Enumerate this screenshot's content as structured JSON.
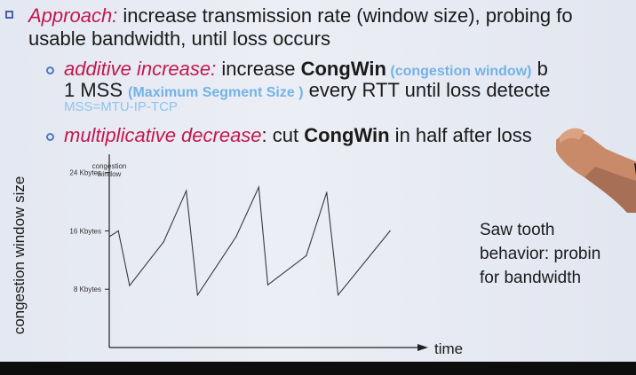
{
  "approach": {
    "label": "Approach:",
    "text_line1": " increase transmission rate (window size), probing fo",
    "text_line2": "usable bandwidth, until loss occurs"
  },
  "additive": {
    "label": "additive increase:",
    "text_a": " increase ",
    "congwin": "CongWin",
    "paren": " (congestion window)",
    "tail": " b",
    "line2_a": "1 MSS ",
    "line2_paren": "(Maximum Segment Size )",
    "line2_b": " every RTT until loss detecte",
    "mss_note": "MSS=MTU-IP-TCP"
  },
  "multiplicative": {
    "label": "multiplicative decrease",
    "text_a": ": cut ",
    "congwin": "CongWin",
    "text_b": " in half after loss"
  },
  "chart_data": {
    "type": "line",
    "title": "congestion window",
    "xlabel": "time",
    "ylabel": "congestion window size",
    "y_ticks": [
      "8 Kbytes",
      "16 Kbytes",
      "24 Kbytes"
    ],
    "y_tick_values": [
      8,
      16,
      24
    ],
    "ylim": [
      0,
      27
    ],
    "series": [
      {
        "x": [
          0,
          0.4,
          0.9,
          2.4,
          3.4,
          3.9,
          5.6,
          6.6,
          7.0,
          8.7,
          9.6,
          10.1,
          12.4
        ],
        "y": [
          15.2,
          16,
          8.5,
          14.5,
          21.5,
          7.2,
          15.2,
          22,
          8.6,
          12.6,
          21.3,
          7.2,
          16
        ]
      }
    ],
    "xlim": [
      0,
      14
    ]
  },
  "saw_note": {
    "line1": "Saw tooth",
    "line2": "behavior: probin",
    "line3": "for bandwidth"
  },
  "colors": {
    "accent_red": "#c2184f",
    "accent_blue": "#73b3e6",
    "bullet_blue": "#4a7ac4"
  },
  "icons": [
    "square-bullet-icon",
    "circle-bullet-icon",
    "presenter-hand"
  ]
}
